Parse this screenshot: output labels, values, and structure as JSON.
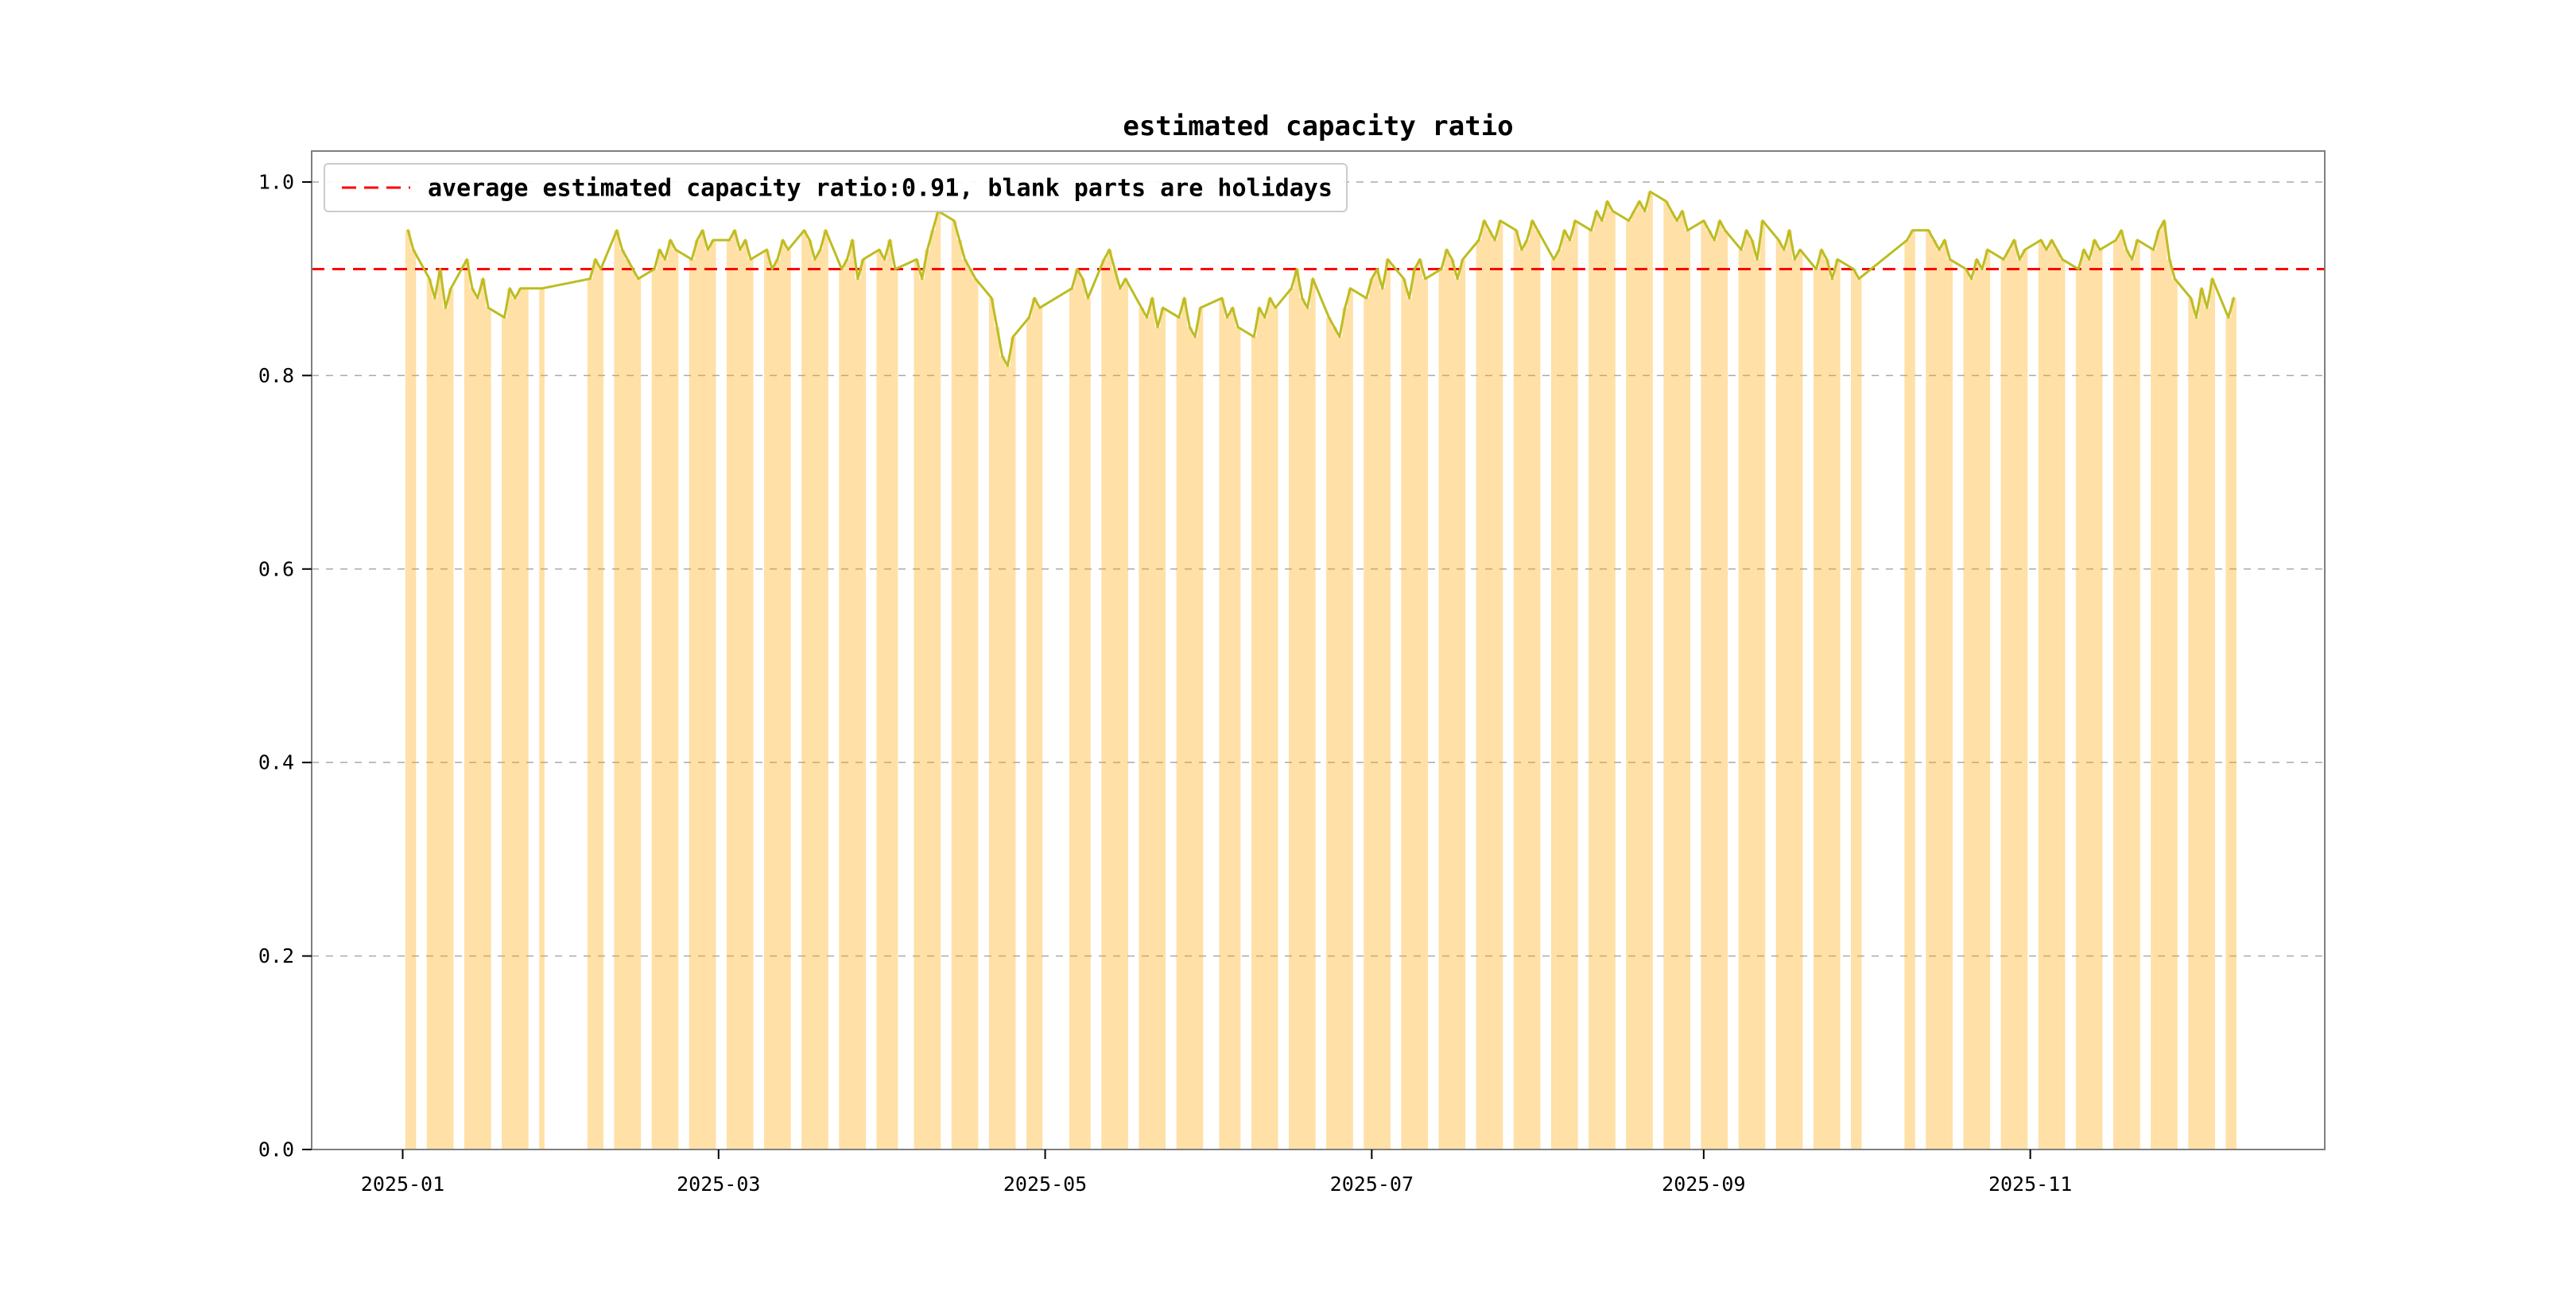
{
  "chart_data": {
    "type": "bar+line",
    "title": "estimated capacity ratio",
    "legend_label": "average estimated capacity ratio:0.91, blank parts are holidays",
    "series_name": "estimated capacity ratio",
    "average": 0.91,
    "ylim": [
      0,
      1.032
    ],
    "xlim": [
      "2024-12-15",
      "2025-12-26"
    ],
    "yticks": [
      0.0,
      0.2,
      0.4,
      0.6,
      0.8,
      1.0
    ],
    "ytick_labels": [
      "0.0",
      "0.2",
      "0.4",
      "0.6",
      "0.8",
      "1.0"
    ],
    "xticks": [
      {
        "date": "2025-01-01",
        "label": "2025-01"
      },
      {
        "date": "2025-03-01",
        "label": "2025-03"
      },
      {
        "date": "2025-05-01",
        "label": "2025-05"
      },
      {
        "date": "2025-07-01",
        "label": "2025-07"
      },
      {
        "date": "2025-09-01",
        "label": "2025-09"
      },
      {
        "date": "2025-11-01",
        "label": "2025-11"
      }
    ],
    "grid": "horizontal-dashed",
    "legend_position": "upper-left",
    "colors": {
      "bar": "#ffa500",
      "bar_opacity": 0.35,
      "line": "#bcbd22",
      "average": "#ff0000",
      "grid": "#aaaaaa",
      "spine": "#7f7f7f"
    },
    "note": "blank parts are holidays",
    "spans": [
      {
        "start": "2025-01-02",
        "values": [
          0.95,
          0.93
        ]
      },
      {
        "start": "2025-01-06",
        "values": [
          0.9,
          0.88,
          0.91,
          0.87,
          0.89
        ]
      },
      {
        "start": "2025-01-13",
        "values": [
          0.92,
          0.89,
          0.88,
          0.9,
          0.87
        ]
      },
      {
        "start": "2025-01-20",
        "values": [
          0.86,
          0.89,
          0.88,
          0.89,
          0.89
        ]
      },
      {
        "start": "2025-01-27",
        "values": [
          0.89
        ]
      },
      {
        "start": "2025-02-05",
        "values": [
          0.9,
          0.92,
          0.91
        ]
      },
      {
        "start": "2025-02-10",
        "values": [
          0.95,
          0.93,
          0.92,
          0.91,
          0.9
        ]
      },
      {
        "start": "2025-02-17",
        "values": [
          0.91,
          0.93,
          0.92,
          0.94,
          0.93
        ]
      },
      {
        "start": "2025-02-24",
        "values": [
          0.92,
          0.94,
          0.95,
          0.93,
          0.94
        ]
      },
      {
        "start": "2025-03-03",
        "values": [
          0.94,
          0.95,
          0.93,
          0.94,
          0.92
        ]
      },
      {
        "start": "2025-03-10",
        "values": [
          0.93,
          0.91,
          0.92,
          0.94,
          0.93
        ]
      },
      {
        "start": "2025-03-17",
        "values": [
          0.95,
          0.94,
          0.92,
          0.93,
          0.95
        ]
      },
      {
        "start": "2025-03-24",
        "values": [
          0.91,
          0.92,
          0.94,
          0.9,
          0.92
        ]
      },
      {
        "start": "2025-03-31",
        "values": [
          0.93,
          0.92,
          0.94,
          0.91
        ]
      },
      {
        "start": "2025-04-07",
        "values": [
          0.92,
          0.9,
          0.93,
          0.95,
          0.97
        ]
      },
      {
        "start": "2025-04-14",
        "values": [
          0.96,
          0.94,
          0.92,
          0.91,
          0.9
        ]
      },
      {
        "start": "2025-04-21",
        "values": [
          0.88,
          0.85,
          0.82,
          0.81,
          0.84
        ]
      },
      {
        "start": "2025-04-28",
        "values": [
          0.86,
          0.88,
          0.87
        ]
      },
      {
        "start": "2025-05-06",
        "values": [
          0.89,
          0.91,
          0.9,
          0.88
        ]
      },
      {
        "start": "2025-05-12",
        "values": [
          0.92,
          0.93,
          0.91,
          0.89,
          0.9
        ]
      },
      {
        "start": "2025-05-19",
        "values": [
          0.87,
          0.86,
          0.88,
          0.85,
          0.87
        ]
      },
      {
        "start": "2025-05-26",
        "values": [
          0.86,
          0.88,
          0.85,
          0.84,
          0.87
        ]
      },
      {
        "start": "2025-06-03",
        "values": [
          0.88,
          0.86,
          0.87,
          0.85
        ]
      },
      {
        "start": "2025-06-09",
        "values": [
          0.84,
          0.87,
          0.86,
          0.88,
          0.87
        ]
      },
      {
        "start": "2025-06-16",
        "values": [
          0.89,
          0.91,
          0.88,
          0.87,
          0.9
        ]
      },
      {
        "start": "2025-06-23",
        "values": [
          0.86,
          0.85,
          0.84,
          0.87,
          0.89
        ]
      },
      {
        "start": "2025-06-30",
        "values": [
          0.88,
          0.9,
          0.91,
          0.89,
          0.92
        ]
      },
      {
        "start": "2025-07-07",
        "values": [
          0.9,
          0.88,
          0.91,
          0.92,
          0.9
        ]
      },
      {
        "start": "2025-07-14",
        "values": [
          0.91,
          0.93,
          0.92,
          0.9,
          0.92
        ]
      },
      {
        "start": "2025-07-21",
        "values": [
          0.94,
          0.96,
          0.95,
          0.94,
          0.96
        ]
      },
      {
        "start": "2025-07-28",
        "values": [
          0.95,
          0.93,
          0.94,
          0.96,
          0.95
        ]
      },
      {
        "start": "2025-08-04",
        "values": [
          0.92,
          0.93,
          0.95,
          0.94,
          0.96
        ]
      },
      {
        "start": "2025-08-11",
        "values": [
          0.95,
          0.97,
          0.96,
          0.98,
          0.97
        ]
      },
      {
        "start": "2025-08-18",
        "values": [
          0.96,
          0.97,
          0.98,
          0.97,
          0.99
        ]
      },
      {
        "start": "2025-08-25",
        "values": [
          0.98,
          0.97,
          0.96,
          0.97,
          0.95
        ]
      },
      {
        "start": "2025-09-01",
        "values": [
          0.96,
          0.95,
          0.94,
          0.96,
          0.95
        ]
      },
      {
        "start": "2025-09-08",
        "values": [
          0.93,
          0.95,
          0.94,
          0.92,
          0.96
        ]
      },
      {
        "start": "2025-09-15",
        "values": [
          0.94,
          0.93,
          0.95,
          0.92,
          0.93
        ]
      },
      {
        "start": "2025-09-22",
        "values": [
          0.91,
          0.93,
          0.92,
          0.9,
          0.92
        ]
      },
      {
        "start": "2025-09-29",
        "values": [
          0.91,
          0.9
        ]
      },
      {
        "start": "2025-10-09",
        "values": [
          0.94,
          0.95
        ]
      },
      {
        "start": "2025-10-13",
        "values": [
          0.95,
          0.94,
          0.93,
          0.94,
          0.92
        ]
      },
      {
        "start": "2025-10-20",
        "values": [
          0.91,
          0.9,
          0.92,
          0.91,
          0.93
        ]
      },
      {
        "start": "2025-10-27",
        "values": [
          0.92,
          0.93,
          0.94,
          0.92,
          0.93
        ]
      },
      {
        "start": "2025-11-03",
        "values": [
          0.94,
          0.93,
          0.94,
          0.93,
          0.92
        ]
      },
      {
        "start": "2025-11-10",
        "values": [
          0.91,
          0.93,
          0.92,
          0.94,
          0.93
        ]
      },
      {
        "start": "2025-11-17",
        "values": [
          0.94,
          0.95,
          0.93,
          0.92,
          0.94
        ]
      },
      {
        "start": "2025-11-24",
        "values": [
          0.93,
          0.95,
          0.96,
          0.92,
          0.9
        ]
      },
      {
        "start": "2025-12-01",
        "values": [
          0.88,
          0.86,
          0.89,
          0.87,
          0.9
        ]
      },
      {
        "start": "2025-12-08",
        "values": [
          0.86,
          0.88
        ]
      }
    ]
  }
}
